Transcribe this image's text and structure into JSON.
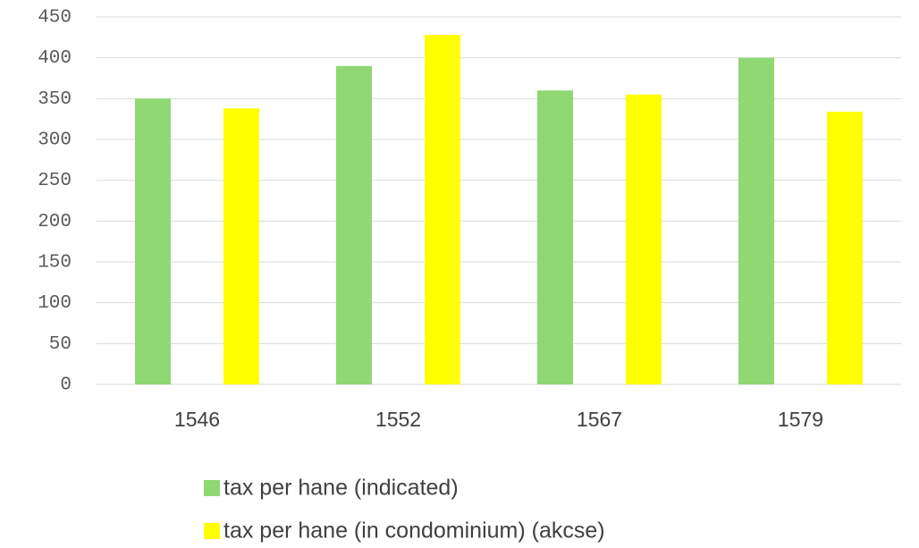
{
  "chart_data": {
    "type": "bar",
    "categories": [
      "1546",
      "1552",
      "1567",
      "1579"
    ],
    "series": [
      {
        "name": "tax per hane (indicated)",
        "color": "#8fd873",
        "values": [
          350,
          390,
          360,
          400
        ]
      },
      {
        "name": "tax per hane (in condominium) (akcse)",
        "color": "#ffff00",
        "values": [
          338,
          428,
          355,
          334
        ]
      }
    ],
    "ylim": [
      0,
      450
    ],
    "yticks": [
      0,
      50,
      100,
      150,
      200,
      250,
      300,
      350,
      400,
      450
    ],
    "grid": true,
    "legend": "bottom"
  }
}
